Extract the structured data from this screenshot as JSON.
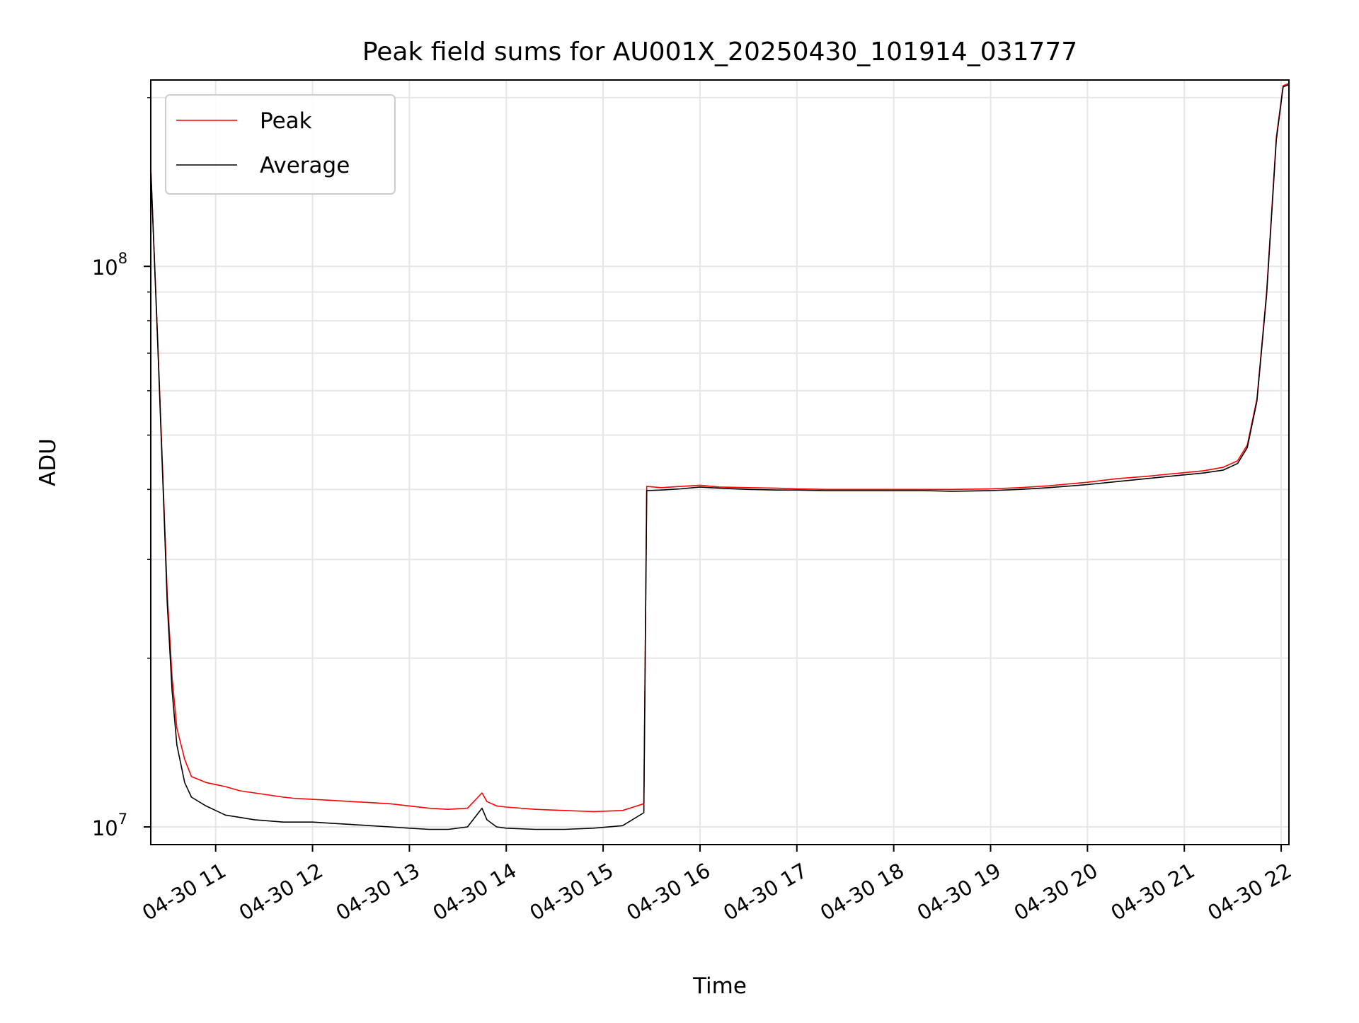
{
  "chart_data": {
    "type": "line",
    "title": "Peak field sums for AU001X_20250430_101914_031777",
    "xlabel": "Time",
    "ylabel": "ADU",
    "yscale": "log",
    "grid": true,
    "grid_minor": true,
    "legend_position": "top-left",
    "x_unit": "hour of 2025-04-30",
    "xlim": [
      10.33,
      22.08
    ],
    "ylim": [
      9300000,
      215000000
    ],
    "x_ticks": [
      {
        "value": 11,
        "label": "04-30 11"
      },
      {
        "value": 12,
        "label": "04-30 12"
      },
      {
        "value": 13,
        "label": "04-30 13"
      },
      {
        "value": 14,
        "label": "04-30 14"
      },
      {
        "value": 15,
        "label": "04-30 15"
      },
      {
        "value": 16,
        "label": "04-30 16"
      },
      {
        "value": 17,
        "label": "04-30 17"
      },
      {
        "value": 18,
        "label": "04-30 18"
      },
      {
        "value": 19,
        "label": "04-30 19"
      },
      {
        "value": 20,
        "label": "04-30 20"
      },
      {
        "value": 21,
        "label": "04-30 21"
      },
      {
        "value": 22,
        "label": "04-30 22"
      }
    ],
    "y_ticks": [
      {
        "value": 10000000,
        "base": "10",
        "exp": "7"
      },
      {
        "value": 100000000,
        "base": "10",
        "exp": "8"
      }
    ],
    "series": [
      {
        "name": "Peak",
        "color": "#ff0000",
        "x": [
          10.33,
          10.4,
          10.47,
          10.5,
          10.55,
          10.6,
          10.68,
          10.75,
          10.9,
          11.0,
          11.1,
          11.25,
          11.4,
          11.55,
          11.7,
          11.8,
          12.0,
          12.2,
          12.4,
          12.6,
          12.8,
          13.0,
          13.2,
          13.4,
          13.6,
          13.75,
          13.8,
          13.9,
          14.0,
          14.3,
          14.6,
          14.9,
          15.2,
          15.42,
          15.45,
          15.6,
          15.8,
          16.0,
          16.2,
          16.5,
          16.8,
          17.0,
          17.3,
          17.6,
          18.0,
          18.3,
          18.6,
          19.0,
          19.3,
          19.6,
          20.0,
          20.3,
          20.6,
          20.9,
          21.2,
          21.4,
          21.55,
          21.65,
          21.75,
          21.85,
          21.95,
          22.02,
          22.08
        ],
        "y": [
          150000000,
          75000000,
          36000000,
          26000000,
          18500000,
          15000000,
          13200000,
          12300000,
          12000000,
          11900000,
          11800000,
          11600000,
          11500000,
          11400000,
          11300000,
          11250000,
          11200000,
          11150000,
          11100000,
          11050000,
          11000000,
          10900000,
          10800000,
          10750000,
          10800000,
          11500000,
          11100000,
          10900000,
          10850000,
          10750000,
          10700000,
          10650000,
          10700000,
          11000000,
          40500000,
          40300000,
          40500000,
          40700000,
          40400000,
          40300000,
          40200000,
          40100000,
          40000000,
          40000000,
          40000000,
          40000000,
          40000000,
          40100000,
          40300000,
          40600000,
          41200000,
          41800000,
          42200000,
          42700000,
          43200000,
          43800000,
          45000000,
          48000000,
          58000000,
          90000000,
          170000000,
          210000000,
          212000000
        ]
      },
      {
        "name": "Average",
        "color": "#000000",
        "x": [
          10.33,
          10.4,
          10.47,
          10.5,
          10.55,
          10.6,
          10.68,
          10.75,
          10.9,
          11.0,
          11.1,
          11.25,
          11.4,
          11.55,
          11.7,
          11.8,
          12.0,
          12.2,
          12.4,
          12.6,
          12.8,
          13.0,
          13.2,
          13.4,
          13.6,
          13.75,
          13.8,
          13.9,
          14.0,
          14.3,
          14.6,
          14.9,
          15.2,
          15.42,
          15.45,
          15.6,
          15.8,
          16.0,
          16.2,
          16.5,
          16.8,
          17.0,
          17.3,
          17.6,
          18.0,
          18.3,
          18.6,
          19.0,
          19.3,
          19.6,
          20.0,
          20.3,
          20.6,
          20.9,
          21.2,
          21.4,
          21.55,
          21.65,
          21.75,
          21.85,
          21.95,
          22.02,
          22.08
        ],
        "y": [
          150000000,
          74000000,
          35000000,
          25000000,
          17500000,
          14000000,
          12000000,
          11300000,
          10900000,
          10700000,
          10500000,
          10400000,
          10300000,
          10250000,
          10200000,
          10200000,
          10200000,
          10150000,
          10100000,
          10050000,
          10000000,
          9950000,
          9900000,
          9900000,
          10000000,
          10800000,
          10300000,
          10000000,
          9950000,
          9900000,
          9900000,
          9950000,
          10050000,
          10600000,
          39800000,
          39900000,
          40100000,
          40400000,
          40200000,
          40000000,
          39900000,
          39900000,
          39800000,
          39800000,
          39800000,
          39800000,
          39700000,
          39800000,
          40000000,
          40300000,
          40800000,
          41300000,
          41800000,
          42300000,
          42800000,
          43300000,
          44500000,
          47500000,
          57500000,
          89000000,
          168000000,
          209000000,
          211000000
        ]
      }
    ]
  }
}
